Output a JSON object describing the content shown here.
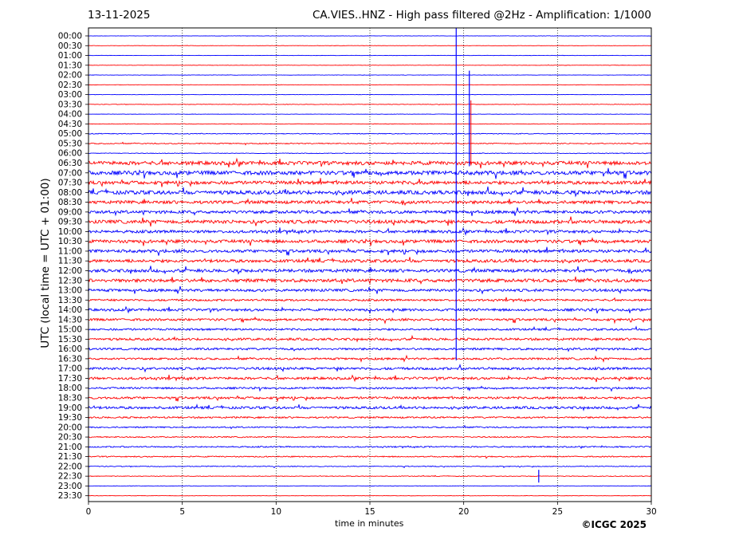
{
  "header": {
    "date": "13-11-2025",
    "title": "CA.VIES..HNZ - High pass filtered @2Hz - Amplification: 1/1000"
  },
  "footer": {
    "copyright": "©ICGC 2025"
  },
  "chart_data": {
    "type": "line",
    "title": "CA.VIES..HNZ - High pass filtered @2Hz - Amplification: 1/1000",
    "subtitle": "13-11-2025",
    "xlabel": "time in minutes",
    "ylabel": "UTC (local time = UTC + 01:00)",
    "xlim": [
      0,
      30
    ],
    "x_ticks": [
      "0",
      "5",
      "10",
      "15",
      "20",
      "25",
      "30"
    ],
    "grid": "vertical dotted lines at 5-minute intervals",
    "row_labels": [
      "00:00",
      "00:30",
      "01:00",
      "01:30",
      "02:00",
      "02:30",
      "03:00",
      "03:30",
      "04:00",
      "04:30",
      "05:00",
      "05:30",
      "06:00",
      "06:30",
      "07:00",
      "07:30",
      "08:00",
      "08:30",
      "09:00",
      "09:30",
      "10:00",
      "10:30",
      "11:00",
      "11:30",
      "12:00",
      "12:30",
      "13:00",
      "13:30",
      "14:00",
      "14:30",
      "15:00",
      "15:30",
      "16:00",
      "16:30",
      "17:00",
      "17:30",
      "18:00",
      "18:30",
      "19:00",
      "19:30",
      "20:00",
      "20:30",
      "21:00",
      "21:30",
      "22:00",
      "22:30",
      "23:00",
      "23:30"
    ],
    "row_colors": [
      "#0000ff",
      "#ff0000"
    ],
    "noise_level": [
      0.2,
      0.2,
      0.2,
      0.2,
      0.2,
      0.2,
      0.2,
      0.3,
      0.2,
      0.3,
      0.5,
      0.6,
      0.4,
      2.2,
      2.4,
      2.0,
      2.3,
      1.9,
      1.8,
      2.1,
      1.7,
      1.9,
      1.8,
      1.8,
      1.9,
      2.0,
      1.6,
      1.2,
      1.5,
      1.4,
      1.2,
      1.4,
      1.3,
      1.2,
      1.5,
      1.5,
      1.1,
      1.4,
      1.5,
      1.0,
      0.8,
      0.7,
      0.8,
      0.7,
      0.5,
      0.4,
      0.3,
      0.2
    ],
    "events": [
      {
        "row": 11,
        "minute": 19.6,
        "note": "large spike extending from 00:00 to 16:30"
      },
      {
        "row": 11,
        "minute": 20.3,
        "note": "spike extending from 03:00 to 06:30"
      },
      {
        "row": 45,
        "minute": 24.0,
        "note": "isolated burst"
      }
    ]
  }
}
